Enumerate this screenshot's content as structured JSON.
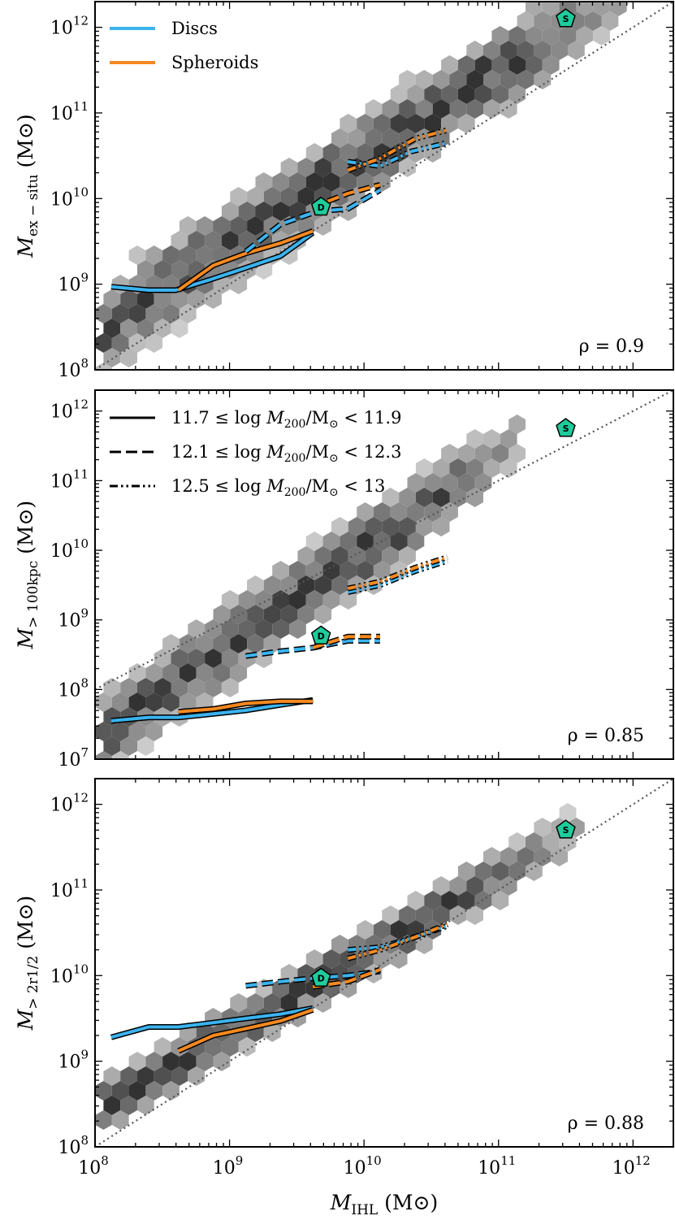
{
  "chart_data": [
    {
      "type": "scatter",
      "panel": "top",
      "ylabel": "M_ex-situ (M⊙)",
      "ylabel_main": "M",
      "ylabel_sub": "ex − situ",
      "ylabel_unit": " (M",
      "ylabel_unit_close": ")",
      "ylim_log": [
        8,
        12.3
      ],
      "rho_label": "ρ = 0.9",
      "marker_S": {
        "label": "S",
        "x_log": 11.5,
        "y_log": 12.1
      },
      "marker_D": {
        "label": "D",
        "x_log": 9.68,
        "y_log": 9.9
      },
      "series": [
        {
          "name": "Discs, 11.7 ≤ log M200/M⊙ < 11.9",
          "color": "#3bb3ef",
          "dash": "solid",
          "x_log": [
            8.12,
            8.4,
            8.6,
            8.85,
            9.1,
            9.38,
            9.62
          ],
          "y_log": [
            8.97,
            8.93,
            8.93,
            9.05,
            9.18,
            9.33,
            9.6
          ]
        },
        {
          "name": "Spheroids, 11.7 ≤ log M200/M⊙ < 11.9",
          "color": "#f5891f",
          "dash": "solid",
          "x_log": [
            8.62,
            8.88,
            9.12,
            9.38,
            9.62
          ],
          "y_log": [
            8.93,
            9.22,
            9.36,
            9.48,
            9.62
          ]
        },
        {
          "name": "Discs, 12.1 ≤ log M200/M⊙ < 12.3",
          "color": "#3bb3ef",
          "dash": "dashed",
          "x_log": [
            9.12,
            9.38,
            9.65,
            9.88,
            10.12
          ],
          "y_log": [
            9.38,
            9.7,
            9.85,
            9.88,
            10.1
          ]
        },
        {
          "name": "Spheroids, 12.1 ≤ log M200/M⊙ < 12.3",
          "color": "#f5891f",
          "dash": "dashed",
          "x_log": [
            9.62,
            9.88,
            10.12
          ],
          "y_log": [
            9.9,
            10.06,
            10.16
          ]
        },
        {
          "name": "Discs, 12.5 ≤ log M200/M⊙ < 13",
          "color": "#3bb3ef",
          "dash": "dashdotdot",
          "x_log": [
            9.88,
            10.12,
            10.35,
            10.62
          ],
          "y_log": [
            10.43,
            10.38,
            10.55,
            10.65
          ]
        },
        {
          "name": "Spheroids, 12.5 ≤ log M200/M⊙ < 13",
          "color": "#f5891f",
          "dash": "dashdotdot",
          "x_log": [
            9.88,
            10.12,
            10.38,
            10.62
          ],
          "y_log": [
            10.33,
            10.47,
            10.7,
            10.8
          ]
        }
      ],
      "hexbin": {
        "slope": 1.02,
        "intercept_log": 0.28,
        "scatter_log": 0.35,
        "x_log_range": [
          8.05,
          11.95
        ]
      },
      "legend": [
        {
          "label": "Discs",
          "color": "#3bb3ef"
        },
        {
          "label": "Spheroids",
          "color": "#f5891f"
        }
      ]
    },
    {
      "type": "scatter",
      "panel": "middle",
      "ylabel": "M_>100kpc (M⊙)",
      "ylabel_main": "M",
      "ylabel_sub": "> 100kpc",
      "ylabel_unit": " (M",
      "ylabel_unit_close": ")",
      "ylim_log": [
        7,
        12.3
      ],
      "rho_label": "ρ = 0.85",
      "marker_S": {
        "label": "S",
        "x_log": 11.5,
        "y_log": 11.75
      },
      "marker_D": {
        "label": "D",
        "x_log": 9.68,
        "y_log": 8.77
      },
      "series": [
        {
          "name": "Discs, 11.7 ≤ log M200/M⊙ < 11.9",
          "color": "#3bb3ef",
          "dash": "solid",
          "x_log": [
            8.12,
            8.4,
            8.62,
            8.88,
            9.12,
            9.38,
            9.62
          ],
          "y_log": [
            7.55,
            7.6,
            7.6,
            7.65,
            7.7,
            7.78,
            7.85
          ]
        },
        {
          "name": "Spheroids, 11.7 ≤ log M200/M⊙ < 11.9",
          "color": "#f5891f",
          "dash": "solid",
          "x_log": [
            8.62,
            8.88,
            9.12,
            9.38,
            9.62
          ],
          "y_log": [
            7.68,
            7.72,
            7.8,
            7.83,
            7.83
          ]
        },
        {
          "name": "Discs, 12.1 ≤ log M200/M⊙ < 12.3",
          "color": "#3bb3ef",
          "dash": "dashed",
          "x_log": [
            9.12,
            9.38,
            9.62,
            9.88,
            10.12
          ],
          "y_log": [
            8.48,
            8.55,
            8.6,
            8.7,
            8.7
          ]
        },
        {
          "name": "Spheroids, 12.1 ≤ log M200/M⊙ < 12.3",
          "color": "#f5891f",
          "dash": "dashed",
          "x_log": [
            9.62,
            9.88,
            10.12
          ],
          "y_log": [
            8.6,
            8.76,
            8.76
          ]
        },
        {
          "name": "Discs, 12.5 ≤ log M200/M⊙ < 13",
          "color": "#3bb3ef",
          "dash": "dashdotdot",
          "x_log": [
            9.88,
            10.12,
            10.38,
            10.62
          ],
          "y_log": [
            9.4,
            9.5,
            9.7,
            9.85
          ]
        },
        {
          "name": "Spheroids, 12.5 ≤ log M200/M⊙ < 13",
          "color": "#f5891f",
          "dash": "dashdotdot",
          "x_log": [
            9.88,
            10.12,
            10.38,
            10.62
          ],
          "y_log": [
            9.45,
            9.55,
            9.75,
            9.9
          ]
        }
      ],
      "hexbin": {
        "slope": 1.35,
        "intercept_log": -3.5,
        "scatter_log": 0.4,
        "x_log_range": [
          8.05,
          11.2
        ]
      },
      "legend": [
        {
          "label": "11.7 ≤ log M200/M⊙ < 11.9",
          "dash": "solid",
          "text_pre": "11.7 ≤ log ",
          "text_post": " < 11.9"
        },
        {
          "label": "12.1 ≤ log M200/M⊙ < 12.3",
          "dash": "dashed",
          "text_pre": "12.1 ≤ log ",
          "text_post": " < 12.3"
        },
        {
          "label": "12.5 ≤ log M200/M⊙ < 13",
          "dash": "dashdotdot",
          "text_pre": "12.5 ≤ log ",
          "text_post": " < 13"
        }
      ]
    },
    {
      "type": "scatter",
      "panel": "bottom",
      "ylabel": "M_>2r1/2 (M⊙)",
      "ylabel_main": "M",
      "ylabel_sub": "> 2r1/2",
      "ylabel_unit": " (M",
      "ylabel_unit_close": ")",
      "ylim_log": [
        8,
        12.3
      ],
      "rho_label": "ρ = 0.88",
      "marker_S": {
        "label": "S",
        "x_log": 11.5,
        "y_log": 11.7
      },
      "marker_D": {
        "label": "D",
        "x_log": 9.68,
        "y_log": 9.97
      },
      "series": [
        {
          "name": "Discs, 11.7 ≤ log M200/M⊙ < 11.9",
          "color": "#3bb3ef",
          "dash": "solid",
          "x_log": [
            8.12,
            8.4,
            8.62,
            8.88,
            9.12,
            9.38,
            9.62
          ],
          "y_log": [
            9.28,
            9.4,
            9.4,
            9.45,
            9.5,
            9.55,
            9.62
          ]
        },
        {
          "name": "Spheroids, 11.7 ≤ log M200/M⊙ < 11.9",
          "color": "#f5891f",
          "dash": "solid",
          "x_log": [
            8.62,
            8.88,
            9.12,
            9.38,
            9.62
          ],
          "y_log": [
            9.12,
            9.3,
            9.38,
            9.47,
            9.6
          ]
        },
        {
          "name": "Discs, 12.1 ≤ log M200/M⊙ < 12.3",
          "color": "#3bb3ef",
          "dash": "dashed",
          "x_log": [
            9.12,
            9.38,
            9.62,
            9.88,
            10.12
          ],
          "y_log": [
            9.88,
            9.93,
            9.97,
            10.0,
            10.05
          ]
        },
        {
          "name": "Spheroids, 12.1 ≤ log M200/M⊙ < 12.3",
          "color": "#f5891f",
          "dash": "dashed",
          "x_log": [
            9.62,
            9.88,
            10.12
          ],
          "y_log": [
            9.87,
            9.93,
            10.07
          ]
        },
        {
          "name": "Discs, 12.5 ≤ log M200/M⊙ < 13",
          "color": "#3bb3ef",
          "dash": "dashdotdot",
          "x_log": [
            9.88,
            10.12,
            10.38,
            10.62
          ],
          "y_log": [
            10.3,
            10.33,
            10.45,
            10.58
          ]
        },
        {
          "name": "Spheroids, 12.5 ≤ log M200/M⊙ < 13",
          "color": "#f5891f",
          "dash": "dashdotdot",
          "x_log": [
            9.88,
            10.12,
            10.38,
            10.62
          ],
          "y_log": [
            10.2,
            10.3,
            10.45,
            10.6
          ]
        }
      ],
      "hexbin": {
        "slope": 0.92,
        "intercept_log": 1.05,
        "scatter_log": 0.22,
        "x_log_range": [
          8.05,
          11.6
        ]
      },
      "legend": []
    }
  ],
  "x_axis": {
    "xlim_log": [
      8,
      12.3
    ],
    "tick_decades": [
      8,
      9,
      10,
      11,
      12
    ],
    "xlabel_main": "M",
    "xlabel_sub": "IHL",
    "xlabel_unit": " (M",
    "xlabel_unit_close": ")"
  },
  "one_to_one_line": {
    "style": "dotted",
    "color": "#555555"
  },
  "colors": {
    "disc": "#3bb3ef",
    "spheroid": "#f5891f",
    "marker": "#1fcc9b"
  }
}
